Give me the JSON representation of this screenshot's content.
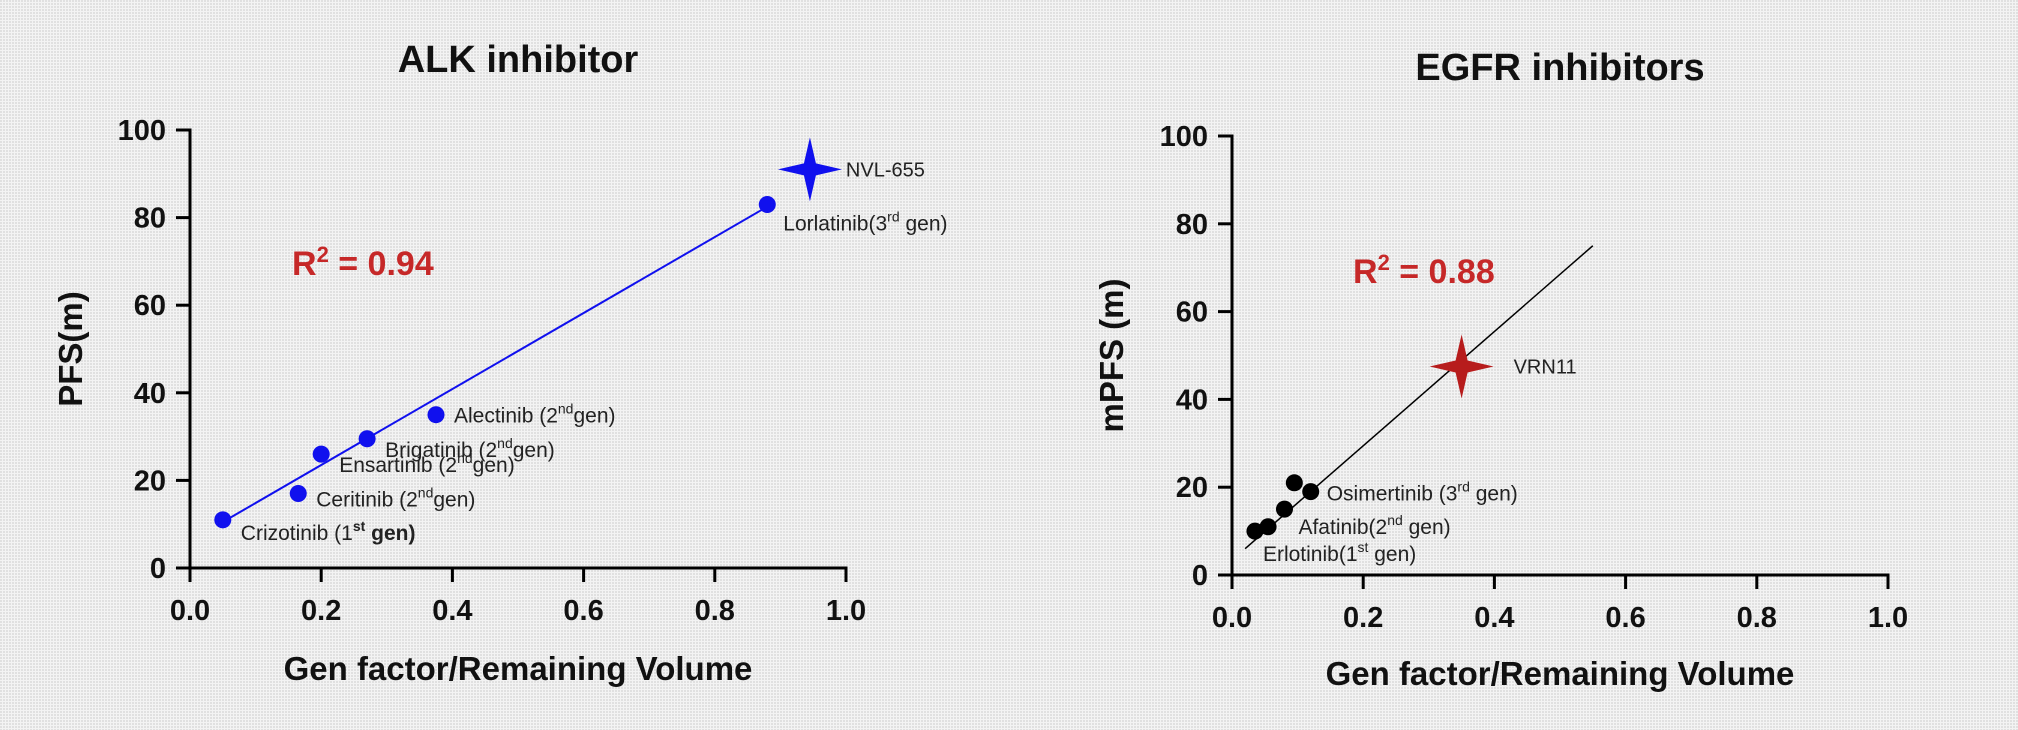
{
  "chart_data": [
    {
      "type": "scatter",
      "title": "ALK inhibitor",
      "xlabel": "Gen factor/Remaining Volume",
      "ylabel": "PFS(m)",
      "xlim": [
        0,
        1.0
      ],
      "ylim": [
        0,
        100
      ],
      "x_ticks": [
        "0.0",
        "0.2",
        "0.4",
        "0.6",
        "0.8",
        "1.0"
      ],
      "y_ticks": [
        "0",
        "20",
        "40",
        "60",
        "80",
        "100"
      ],
      "r2_label": "R",
      "r2_sup": "2",
      "r2_value": " = 0.94",
      "r2_color": "#c62828",
      "marker_color": "#1010ee",
      "fit_line": {
        "x1": 0.05,
        "y1": 10.5,
        "x2": 0.88,
        "y2": 82.5
      },
      "points": [
        {
          "x": 0.05,
          "y": 11,
          "label": "Crizotinib (1",
          "sup": "st",
          "suffix": " gen)",
          "bold": true
        },
        {
          "x": 0.165,
          "y": 17,
          "label": "Ceritinib (2",
          "sup": "nd",
          "suffix": "gen)"
        },
        {
          "x": 0.2,
          "y": 26,
          "label": "Ensartinib (2",
          "sup": "nd",
          "suffix": "gen)"
        },
        {
          "x": 0.27,
          "y": 29.5,
          "label": "Brigatinib (2",
          "sup": "nd",
          "suffix": "gen)"
        },
        {
          "x": 0.375,
          "y": 35,
          "label": "Alectinib (2",
          "sup": "nd",
          "suffix": "gen)"
        },
        {
          "x": 0.88,
          "y": 83,
          "label": "Lorlatinib(3",
          "sup": "rd",
          "suffix": " gen)"
        }
      ],
      "highlight": {
        "x": 0.945,
        "y": 91,
        "label": "NVL-655",
        "color": "#1010ee"
      }
    },
    {
      "type": "scatter",
      "title": "EGFR inhibitors",
      "xlabel": "Gen factor/Remaining Volume",
      "ylabel": "mPFS (m)",
      "xlim": [
        0,
        1.0
      ],
      "ylim": [
        0,
        100
      ],
      "x_ticks": [
        "0.0",
        "0.2",
        "0.4",
        "0.6",
        "0.8",
        "1.0"
      ],
      "y_ticks": [
        "0",
        "20",
        "40",
        "60",
        "80",
        "100"
      ],
      "r2_label": "R",
      "r2_sup": "2",
      "r2_value": " = 0.88",
      "r2_color": "#c62828",
      "marker_color": "#000000",
      "fit_line": {
        "x1": 0.02,
        "y1": 6,
        "x2": 0.55,
        "y2": 75
      },
      "points": [
        {
          "x": 0.035,
          "y": 10,
          "label": "Erlotinib(1",
          "sup": "st",
          "suffix": " gen)"
        },
        {
          "x": 0.055,
          "y": 11
        },
        {
          "x": 0.08,
          "y": 15,
          "label": "Afatinib(2",
          "sup": "nd",
          "suffix": " gen)"
        },
        {
          "x": 0.095,
          "y": 21
        },
        {
          "x": 0.12,
          "y": 19,
          "label": "Osimertinib (3",
          "sup": "rd",
          "suffix": " gen)"
        }
      ],
      "highlight": {
        "x": 0.35,
        "y": 47.5,
        "label": "VRN11",
        "color": "#b71c1c"
      }
    }
  ]
}
